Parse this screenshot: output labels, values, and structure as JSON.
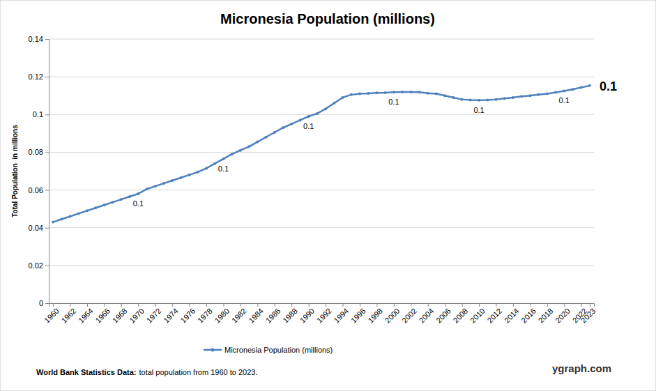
{
  "chart_data": {
    "type": "line",
    "title": "Micronesia Population (millions)",
    "y_label": "Total Population  in millions",
    "x": [
      1960,
      1961,
      1962,
      1963,
      1964,
      1965,
      1966,
      1967,
      1968,
      1969,
      1970,
      1971,
      1972,
      1973,
      1974,
      1975,
      1976,
      1977,
      1978,
      1979,
      1980,
      1981,
      1982,
      1983,
      1984,
      1985,
      1986,
      1987,
      1988,
      1989,
      1990,
      1991,
      1992,
      1993,
      1994,
      1995,
      1996,
      1997,
      1998,
      1999,
      2000,
      2001,
      2002,
      2003,
      2004,
      2005,
      2006,
      2007,
      2008,
      2009,
      2010,
      2011,
      2012,
      2013,
      2014,
      2015,
      2016,
      2017,
      2018,
      2019,
      2020,
      2021,
      2022,
      2023
    ],
    "series": [
      {
        "name": "Micronesia Population (millions)",
        "color": "#4f81bd",
        "marker": "circle",
        "values": [
          0.043,
          0.0445,
          0.046,
          0.0475,
          0.049,
          0.0505,
          0.052,
          0.0535,
          0.055,
          0.0565,
          0.058,
          0.0605,
          0.062,
          0.0635,
          0.065,
          0.0665,
          0.068,
          0.0695,
          0.0715,
          0.074,
          0.0765,
          0.079,
          0.081,
          0.083,
          0.0855,
          0.088,
          0.0905,
          0.093,
          0.095,
          0.097,
          0.099,
          0.1005,
          0.103,
          0.106,
          0.109,
          0.1105,
          0.111,
          0.1112,
          0.1115,
          0.1116,
          0.1118,
          0.1119,
          0.1119,
          0.1118,
          0.1113,
          0.111,
          0.11,
          0.109,
          0.108,
          0.1077,
          0.1076,
          0.1077,
          0.108,
          0.1085,
          0.109,
          0.1096,
          0.11,
          0.1105,
          0.111,
          0.1117,
          0.1125,
          0.1133,
          0.1143,
          0.1153
        ],
        "value_labels": [
          null,
          null,
          null,
          null,
          null,
          null,
          null,
          null,
          null,
          null,
          "0.1",
          null,
          null,
          null,
          null,
          null,
          null,
          null,
          null,
          null,
          "0.1",
          null,
          null,
          null,
          null,
          null,
          null,
          null,
          null,
          null,
          "0.1",
          null,
          null,
          null,
          null,
          null,
          null,
          null,
          null,
          null,
          "0.1",
          null,
          null,
          null,
          null,
          null,
          null,
          null,
          null,
          null,
          "0.1",
          null,
          null,
          null,
          null,
          null,
          null,
          null,
          null,
          null,
          "0.1",
          null,
          null,
          "0.1"
        ]
      }
    ],
    "data_labels": true,
    "xlim": [
      1959.5,
      2023.5
    ],
    "xticks": [
      1960,
      1962,
      1964,
      1966,
      1968,
      1970,
      1972,
      1974,
      1976,
      1978,
      1980,
      1982,
      1984,
      1986,
      1988,
      1990,
      1992,
      1994,
      1996,
      1998,
      2000,
      2002,
      2004,
      2006,
      2008,
      2010,
      2012,
      2014,
      2016,
      2018,
      2020,
      2022,
      2023
    ],
    "ylim": [
      0,
      0.14
    ],
    "yticks": [
      0,
      0.02,
      0.04,
      0.06,
      0.08,
      0.1,
      0.12,
      0.14
    ],
    "grid": true,
    "legend": "bottom",
    "annotations": [
      "World Bank Statistics Data:",
      "total population from 1960 to 2023.",
      "ygraph.com"
    ]
  }
}
